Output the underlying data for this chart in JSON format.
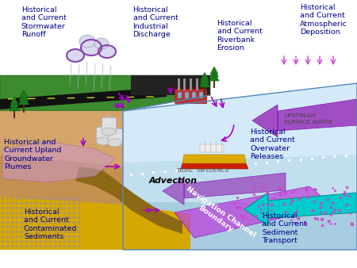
{
  "background_color": "#ffffff",
  "labels": {
    "stormwater": "Historical\nand Current\nStormwater\nRunoff",
    "industrial": "Historical\nand Current\nIndustrial\nDischarge",
    "riverbank": "Historical\nand Current\nRiverbank\nErosion",
    "atmospheric": "Historical\nand Current\nAtmospheric\nDeposition",
    "groundwater": "Historical and\nCurrent Upland\nGroundwater\nPlumes",
    "overwater": "Historical\nand Current\nOverwater\nReleases",
    "sediments": "Historical\nand Current\nContaminated\nSediments",
    "sediment_transport": "Historical\nand Current\nSediment\nTransport",
    "advection": "Advection",
    "tidal": "TIDAL  INFLUENCE",
    "upstream": "UPSTREAM\nSURFACE WATER",
    "nav_channel": "Navigation Channel\nBoundary"
  },
  "label_colors": {
    "stormwater": "#00008B",
    "industrial": "#00008B",
    "riverbank": "#00008B",
    "atmospheric": "#00008B",
    "groundwater": "#00008B",
    "overwater": "#00008B",
    "sediments": "#00008B",
    "sediment_transport": "#00008B",
    "advection": "#000000",
    "tidal": "#555555",
    "upstream": "#444444",
    "nav_channel": "#ffffff"
  }
}
